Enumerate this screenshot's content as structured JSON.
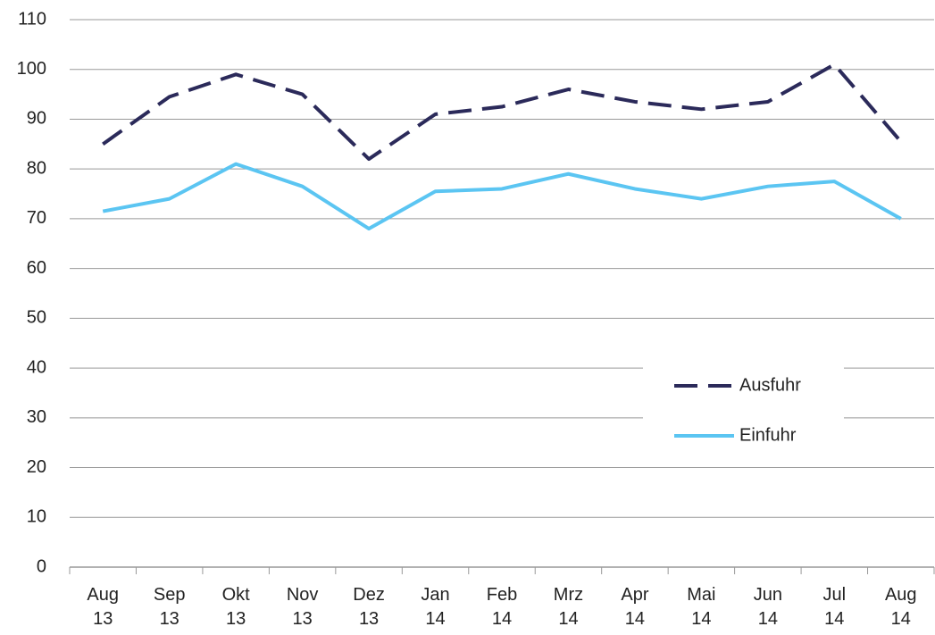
{
  "chart_data": {
    "type": "line",
    "categories": [
      "Aug 13",
      "Sep 13",
      "Okt 13",
      "Nov 13",
      "Dez 13",
      "Jan 14",
      "Feb 14",
      "Mrz 14",
      "Apr 14",
      "Mai 14",
      "Jun 14",
      "Jul 14",
      "Aug 14"
    ],
    "series": [
      {
        "name": "Ausfuhr",
        "color": "#2b2a5a",
        "dash": true,
        "values": [
          85,
          94.5,
          99,
          95,
          82,
          91,
          92.5,
          96,
          93.5,
          92,
          93.5,
          101,
          85.5
        ]
      },
      {
        "name": "Einfuhr",
        "color": "#5bc5f2",
        "dash": false,
        "values": [
          71.5,
          74,
          81,
          76.5,
          68,
          75.5,
          76,
          79,
          76,
          74,
          76.5,
          77.5,
          70
        ]
      }
    ],
    "ylim": [
      0,
      110
    ],
    "yticks": [
      0,
      10,
      20,
      30,
      40,
      50,
      60,
      70,
      80,
      90,
      100,
      110
    ],
    "grid": true,
    "legend": "lower-right"
  }
}
